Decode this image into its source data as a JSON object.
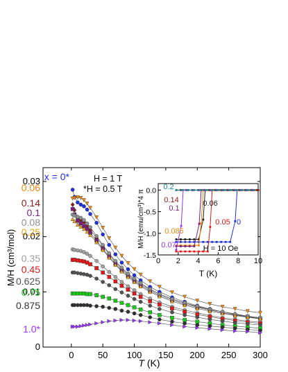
{
  "chart_data": [
    {
      "type": "scatter",
      "xlabel": "T (K)",
      "xlabel_italic": "T",
      "xlabel_unit": " (K)",
      "ylabel": "M/H (cm³/mol)",
      "xlim": [
        -45,
        300
      ],
      "ylim": [
        0,
        0.0325
      ],
      "xticks": [
        0,
        50,
        100,
        150,
        200,
        250,
        300
      ],
      "yticks": [
        0,
        0.01,
        0.02,
        0.03
      ],
      "ytick_labels": [
        "0",
        "0.01",
        "0.02",
        "0.03"
      ],
      "field_notes": [
        "H = 1 T",
        "*H = 0.5 T"
      ],
      "x": [
        2,
        5,
        10,
        15,
        20,
        25,
        30,
        40,
        50,
        60,
        70,
        80,
        90,
        100,
        110,
        125,
        140,
        160,
        180,
        200,
        220,
        240,
        260,
        280,
        300
      ],
      "series": [
        {
          "name": "x = 0*",
          "color": "#1f2ee0",
          "marker": "circle",
          "values": [
            0.0285,
            0.0272,
            0.0262,
            0.0258,
            0.0255,
            0.0249,
            0.0241,
            0.0225,
            0.0204,
            0.0185,
            0.0168,
            0.0153,
            0.0141,
            0.013,
            0.0121,
            0.0109,
            0.01,
            0.009,
            0.0082,
            0.0075,
            0.0069,
            0.0064,
            0.0059,
            0.0055,
            0.0051
          ]
        },
        {
          "name": "0.06",
          "color": "#f0870c",
          "marker": "triangle-down",
          "values": [
            0.0269,
            0.027,
            0.0271,
            0.027,
            0.0266,
            0.026,
            0.0252,
            0.0235,
            0.0216,
            0.0197,
            0.018,
            0.0165,
            0.0152,
            0.0141,
            0.0131,
            0.0119,
            0.0109,
            0.0099,
            0.0091,
            0.0084,
            0.0078,
            0.0073,
            0.0069,
            0.0065,
            0.0062
          ]
        },
        {
          "name": "0.14",
          "color": "#8b1a1a",
          "marker": "diamond",
          "values": [
            0.0258,
            0.0248,
            0.0234,
            0.023,
            0.0226,
            0.022,
            0.0212,
            0.0198,
            0.0183,
            0.0168,
            0.0154,
            0.0142,
            0.0131,
            0.0122,
            0.0114,
            0.0104,
            0.0096,
            0.0087,
            0.008,
            0.0073,
            0.0068,
            0.0064,
            0.006,
            0.0056,
            0.0053
          ]
        },
        {
          "name": "0.1",
          "color": "#7b1e7b",
          "marker": "square",
          "values": [
            0.025,
            0.024,
            0.0229,
            0.0224,
            0.0219,
            0.0214,
            0.0207,
            0.0193,
            0.0178,
            0.0164,
            0.0151,
            0.0139,
            0.0129,
            0.012,
            0.0112,
            0.0102,
            0.0094,
            0.0085,
            0.0078,
            0.0072,
            0.0067,
            0.0062,
            0.0058,
            0.0055,
            0.0052
          ]
        },
        {
          "name": "0.08",
          "color": "#909090",
          "marker": "circle",
          "values": [
            0.024,
            0.0238,
            0.0236,
            0.0234,
            0.023,
            0.0224,
            0.0217,
            0.0201,
            0.0185,
            0.017,
            0.0156,
            0.0144,
            0.0133,
            0.0124,
            0.0116,
            0.0105,
            0.0096,
            0.0087,
            0.008,
            0.0074,
            0.0068,
            0.0064,
            0.006,
            0.0056,
            0.0053
          ]
        },
        {
          "name": "0.25",
          "color": "#e8a317",
          "marker": "triangle",
          "values": [
            0.0232,
            0.0228,
            0.0222,
            0.0218,
            0.0214,
            0.0209,
            0.0203,
            0.019,
            0.0176,
            0.0162,
            0.0149,
            0.0137,
            0.0127,
            0.0118,
            0.011,
            0.01,
            0.0092,
            0.0083,
            0.0076,
            0.007,
            0.0065,
            0.0061,
            0.0057,
            0.0054,
            0.0051
          ]
        },
        {
          "name": "0.35",
          "color": "#a0a0a0",
          "marker": "circle",
          "values": [
            0.0177,
            0.0176,
            0.0175,
            0.0174,
            0.0172,
            0.0169,
            0.0165,
            0.0156,
            0.0146,
            0.0136,
            0.0127,
            0.0118,
            0.011,
            0.0103,
            0.0096,
            0.0088,
            0.0081,
            0.0073,
            0.0067,
            0.0062,
            0.0057,
            0.0053,
            0.005,
            0.0047,
            0.0045
          ]
        },
        {
          "name": "0.45",
          "color": "#e01818",
          "marker": "square",
          "values": [
            0.0158,
            0.0158,
            0.0157,
            0.0156,
            0.0155,
            0.0153,
            0.015,
            0.0143,
            0.0135,
            0.0127,
            0.0119,
            0.0111,
            0.0104,
            0.0097,
            0.0091,
            0.0083,
            0.0077,
            0.007,
            0.0064,
            0.0059,
            0.0055,
            0.0051,
            0.0048,
            0.0045,
            0.0043
          ]
        },
        {
          "name": "0.625",
          "color": "#505050",
          "marker": "circle",
          "values": [
            0.0135,
            0.0135,
            0.0134,
            0.0133,
            0.0132,
            0.0131,
            0.0129,
            0.0124,
            0.0118,
            0.0112,
            0.0105,
            0.0099,
            0.0093,
            0.0087,
            0.0082,
            0.0075,
            0.0069,
            0.0063,
            0.0058,
            0.0054,
            0.005,
            0.0047,
            0.0044,
            0.0042,
            0.004
          ]
        },
        {
          "name": "0.75",
          "color": "#18c818",
          "marker": "square",
          "values": [
            0.0097,
            0.0097,
            0.0097,
            0.0097,
            0.0097,
            0.0096,
            0.0096,
            0.0094,
            0.0091,
            0.0088,
            0.0084,
            0.008,
            0.0076,
            0.0072,
            0.0068,
            0.0063,
            0.0058,
            0.0053,
            0.0049,
            0.0046,
            0.0043,
            0.004,
            0.0038,
            0.0036,
            0.0034
          ]
        },
        {
          "name": "0.875",
          "color": "#303030",
          "marker": "circle",
          "values": [
            0.0076,
            0.0076,
            0.0076,
            0.0076,
            0.0076,
            0.0076,
            0.0075,
            0.0074,
            0.0073,
            0.0071,
            0.0069,
            0.0066,
            0.0064,
            0.0061,
            0.0058,
            0.0054,
            0.005,
            0.0046,
            0.0043,
            0.004,
            0.0038,
            0.0036,
            0.0034,
            0.0032,
            0.003
          ]
        },
        {
          "name": "1.0*",
          "color": "#9b30ff",
          "marker": "triangle-right",
          "values": [
            0.0037,
            0.0037,
            0.0037,
            0.0038,
            0.0039,
            0.004,
            0.0041,
            0.0043,
            0.0045,
            0.0047,
            0.0048,
            0.0049,
            0.0049,
            0.0048,
            0.0047,
            0.0045,
            0.0043,
            0.004,
            0.0037,
            0.0035,
            0.0033,
            0.0031,
            0.0029,
            0.0028,
            0.0026
          ]
        }
      ]
    },
    {
      "type": "line",
      "inset": true,
      "xlabel": "T (K)",
      "ylabel": "M/H (emu/cm³)*4 π",
      "xlim": [
        0,
        10
      ],
      "ylim": [
        -1.5,
        0.15
      ],
      "xticks": [
        0,
        2,
        4,
        6,
        8,
        10
      ],
      "yticks": [
        0,
        -0.5,
        -1,
        -1.5
      ],
      "ytick_labels": [
        "0.0",
        "-0.5",
        "-1.0",
        "-1.5"
      ],
      "annotation": "H = 10 Oe",
      "series": [
        {
          "name": "0",
          "color": "#1f2ee0",
          "tc": 7.8,
          "low": -1.2
        },
        {
          "name": "0.05",
          "color": "#e01818",
          "tc": 5.3,
          "low": -1.42
        },
        {
          "name": "0.06",
          "color": "#202020",
          "tc": 4.6,
          "low": -1.14
        },
        {
          "name": "0.085",
          "color": "#f0870c",
          "tc": 4.4,
          "low": -1.28
        },
        {
          "name": "0.1",
          "color": "#7b1e7b",
          "tc": 4.2,
          "low": -1.3
        },
        {
          "name": "0.14",
          "color": "#8b1a1a",
          "tc": 2.9,
          "low": 0.0
        },
        {
          "name": "0.07",
          "color": "#9b30ff",
          "tc": 2.4,
          "low": -1.38
        },
        {
          "name": "0.2",
          "color": "#1a8a8a",
          "tc": 0,
          "low": 0.0
        }
      ]
    }
  ]
}
